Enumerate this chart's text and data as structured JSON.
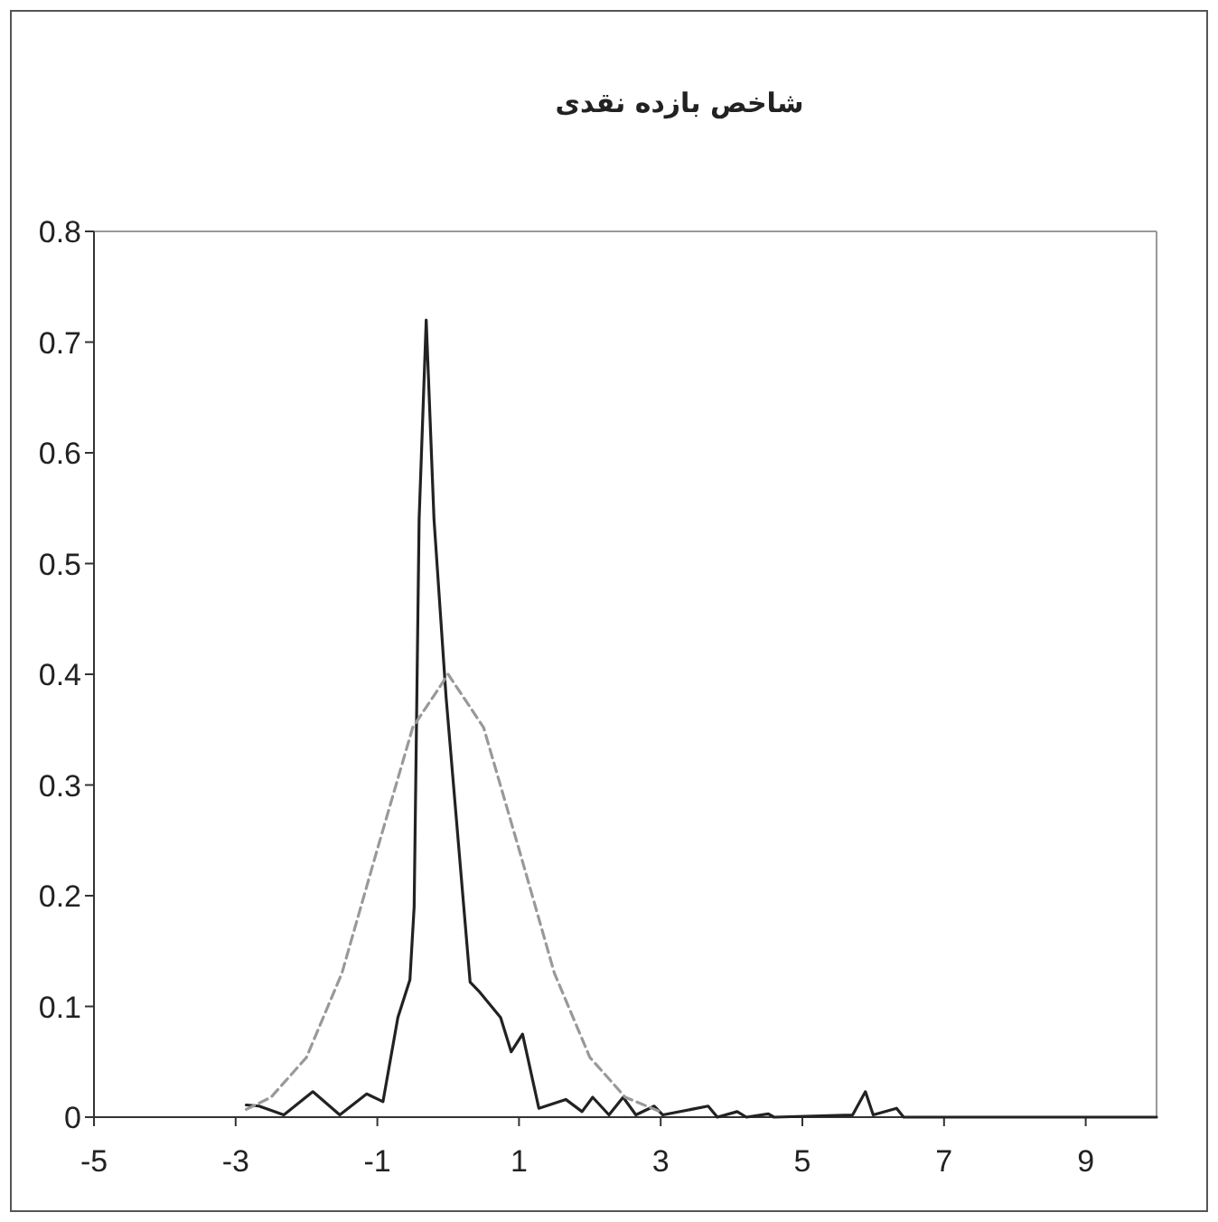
{
  "chart_data": {
    "type": "line",
    "title": "شاخص بازده نقدی",
    "xlim": [
      -5,
      10
    ],
    "xticks": [
      -5,
      -3,
      -1,
      1,
      3,
      5,
      7,
      9
    ],
    "ylim": [
      0,
      0.8
    ],
    "yticks": [
      0,
      0.1,
      0.2,
      0.3,
      0.4,
      0.5,
      0.6,
      0.7,
      0.8
    ],
    "series": [
      {
        "color": "#222222",
        "line_style": "solid",
        "x": [
          -2.85,
          -2.67,
          -2.32,
          -1.91,
          -1.53,
          -1.15,
          -0.92,
          -0.71,
          -0.54,
          -0.48,
          -0.41,
          -0.31,
          -0.2,
          -0.03,
          0.31,
          0.43,
          0.74,
          0.89,
          1.05,
          1.28,
          1.66,
          1.89,
          2.04,
          2.27,
          2.47,
          2.65,
          2.91,
          3.03,
          3.67,
          3.8,
          4.08,
          4.21,
          4.52,
          4.6,
          5.71,
          5.89,
          6.0,
          6.33,
          6.43,
          10
        ],
        "values": [
          0.011,
          0.01,
          0.002,
          0.023,
          0.002,
          0.021,
          0.014,
          0.09,
          0.124,
          0.19,
          0.54,
          0.72,
          0.54,
          0.38,
          0.122,
          0.114,
          0.09,
          0.059,
          0.075,
          0.008,
          0.016,
          0.005,
          0.018,
          0.002,
          0.018,
          0.002,
          0.01,
          0.002,
          0.01,
          0,
          0.005,
          0,
          0.003,
          0,
          0.002,
          0.023,
          0.002,
          0.008,
          0,
          0
        ]
      },
      {
        "color": "#999999",
        "line_style": "dashed",
        "x": [
          -2.85,
          -2.5,
          -2,
          -1.5,
          -1,
          -0.5,
          0,
          0.5,
          1,
          1.5,
          2,
          2.5,
          3.03
        ],
        "values": [
          0.007,
          0.018,
          0.054,
          0.13,
          0.242,
          0.352,
          0.4,
          0.352,
          0.242,
          0.13,
          0.054,
          0.018,
          0.004
        ]
      }
    ]
  }
}
